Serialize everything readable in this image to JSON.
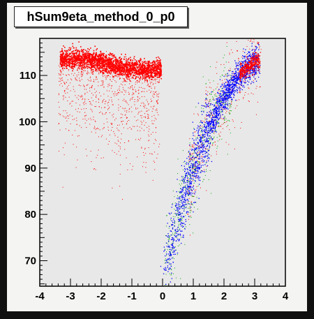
{
  "chart_data": {
    "type": "scatter",
    "title": "hSum9eta_method_0_p0",
    "xlim": [
      -4,
      4
    ],
    "ylim": [
      64.5,
      118
    ],
    "x_ticks": [
      "-4",
      "-3",
      "-2",
      "-1",
      "0",
      "1",
      "2",
      "3",
      "4"
    ],
    "y_ticks": [
      "70",
      "80",
      "90",
      "100",
      "110"
    ],
    "y_tick_values": [
      70,
      80,
      90,
      100,
      110
    ],
    "grid": false,
    "legend": "none",
    "series": [
      {
        "color": "#ff0000",
        "description_points": [
          [
            -3.2,
            113.5
          ],
          [
            -2.8,
            113.8
          ],
          [
            -2.4,
            113.6
          ],
          [
            -2.0,
            112.8
          ],
          [
            -1.5,
            112.0
          ],
          [
            -1.0,
            111.6
          ],
          [
            -0.5,
            111.3
          ],
          [
            -0.1,
            111.5
          ]
        ],
        "spread_points": [
          [
            -3.3,
            95
          ],
          [
            -2.8,
            90
          ],
          [
            -2.0,
            92
          ],
          [
            -1.2,
            96
          ],
          [
            -0.5,
            98
          ],
          [
            1.0,
            105
          ],
          [
            1.8,
            102
          ],
          [
            2.5,
            104
          ],
          [
            2.9,
            113
          ]
        ]
      },
      {
        "color": "#0000ff",
        "description_points": [
          [
            0.1,
            68
          ],
          [
            0.3,
            74
          ],
          [
            0.6,
            82
          ],
          [
            0.9,
            88
          ],
          [
            1.2,
            94
          ],
          [
            1.5,
            99
          ],
          [
            1.8,
            103
          ],
          [
            2.1,
            106.5
          ],
          [
            2.4,
            109.5
          ],
          [
            2.7,
            111.5
          ],
          [
            3.0,
            113.2
          ]
        ]
      },
      {
        "color": "#00aa00",
        "description_points": [
          [
            0.2,
            72
          ],
          [
            0.5,
            80
          ],
          [
            0.8,
            86
          ],
          [
            1.2,
            94
          ],
          [
            1.6,
            100
          ],
          [
            2.0,
            105
          ]
        ]
      }
    ]
  }
}
